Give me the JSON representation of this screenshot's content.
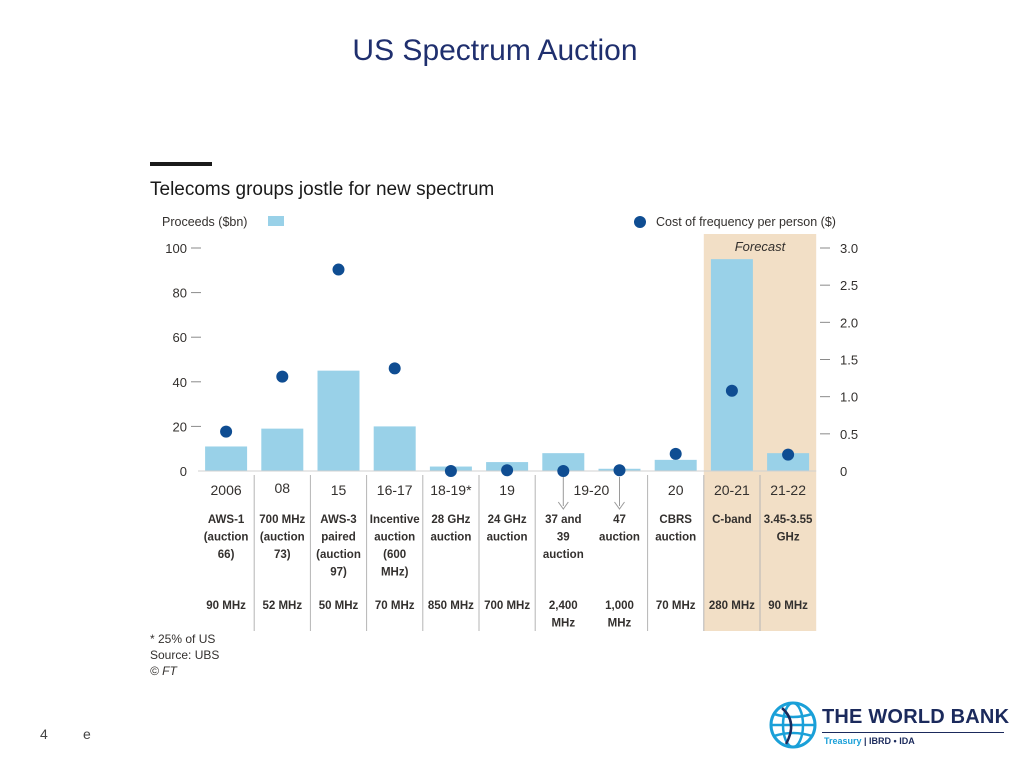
{
  "slide": {
    "title": "US Spectrum Auction",
    "page_number": "4",
    "footer_mark": "e",
    "logo": {
      "name": "THE WORLD BANK",
      "sub_treasury": "Treasury",
      "sub_rest": " | IBRD • IDA"
    }
  },
  "chart_data": {
    "type": "bar",
    "title": "Telecoms groups jostle for new spectrum",
    "left_axis_label": "Proceeds ($bn)",
    "right_axis_label": "Cost of frequency per person ($)",
    "forecast_label": "Forecast",
    "ylim": [
      0,
      100
    ],
    "y_ticks": [
      0,
      20,
      40,
      60,
      80,
      100
    ],
    "y2lim": [
      0,
      3.0
    ],
    "y2_ticks": [
      "0",
      "0.5",
      "1.0",
      "1.5",
      "2.0",
      "2.5",
      "3.0"
    ],
    "categories": [
      "2006",
      "08",
      "15",
      "16-17",
      "18-19*",
      "19",
      "19-20",
      "",
      "20",
      "20-21",
      "21-22"
    ],
    "auctions": [
      [
        "AWS-1",
        "(auction",
        "66)"
      ],
      [
        "700 MHz",
        "(auction",
        "73)"
      ],
      [
        "AWS-3",
        "paired",
        "(auction",
        "97)"
      ],
      [
        "Incentive",
        "auction",
        "(600",
        "MHz)"
      ],
      [
        "28 GHz",
        "auction"
      ],
      [
        "24 GHz",
        "auction"
      ],
      [
        "37 and",
        "39",
        "auction"
      ],
      [
        "47",
        "auction"
      ],
      [
        "CBRS",
        "auction"
      ],
      [
        "C-band"
      ],
      [
        "3.45-3.55",
        "GHz"
      ]
    ],
    "bandwidths": [
      [
        "90 MHz"
      ],
      [
        "52 MHz"
      ],
      [
        "50 MHz"
      ],
      [
        "70 MHz"
      ],
      [
        "850 MHz"
      ],
      [
        "700 MHz"
      ],
      [
        "2,400",
        "MHz"
      ],
      [
        "1,000",
        "MHz"
      ],
      [
        "70 MHz"
      ],
      [
        "280 MHz"
      ],
      [
        "90 MHz"
      ]
    ],
    "series": [
      {
        "name": "Proceeds ($bn)",
        "axis": "left",
        "kind": "bar",
        "values": [
          11,
          19,
          45,
          20,
          2,
          4,
          8,
          1,
          5,
          95,
          8
        ]
      },
      {
        "name": "Cost of frequency per person ($)",
        "axis": "right",
        "kind": "dot",
        "values": [
          0.53,
          1.27,
          2.71,
          1.38,
          0.0,
          0.01,
          0.0,
          0.01,
          0.23,
          1.08,
          0.22
        ]
      }
    ],
    "forecast_indices": [
      9,
      10
    ],
    "notes": [
      "* 25% of US",
      "Source: UBS",
      "© FT"
    ],
    "colors": {
      "bar": "#99d1e8",
      "dot": "#0f4d92",
      "forecast_bg": "#f2dfc6",
      "text": "#33302e"
    }
  }
}
